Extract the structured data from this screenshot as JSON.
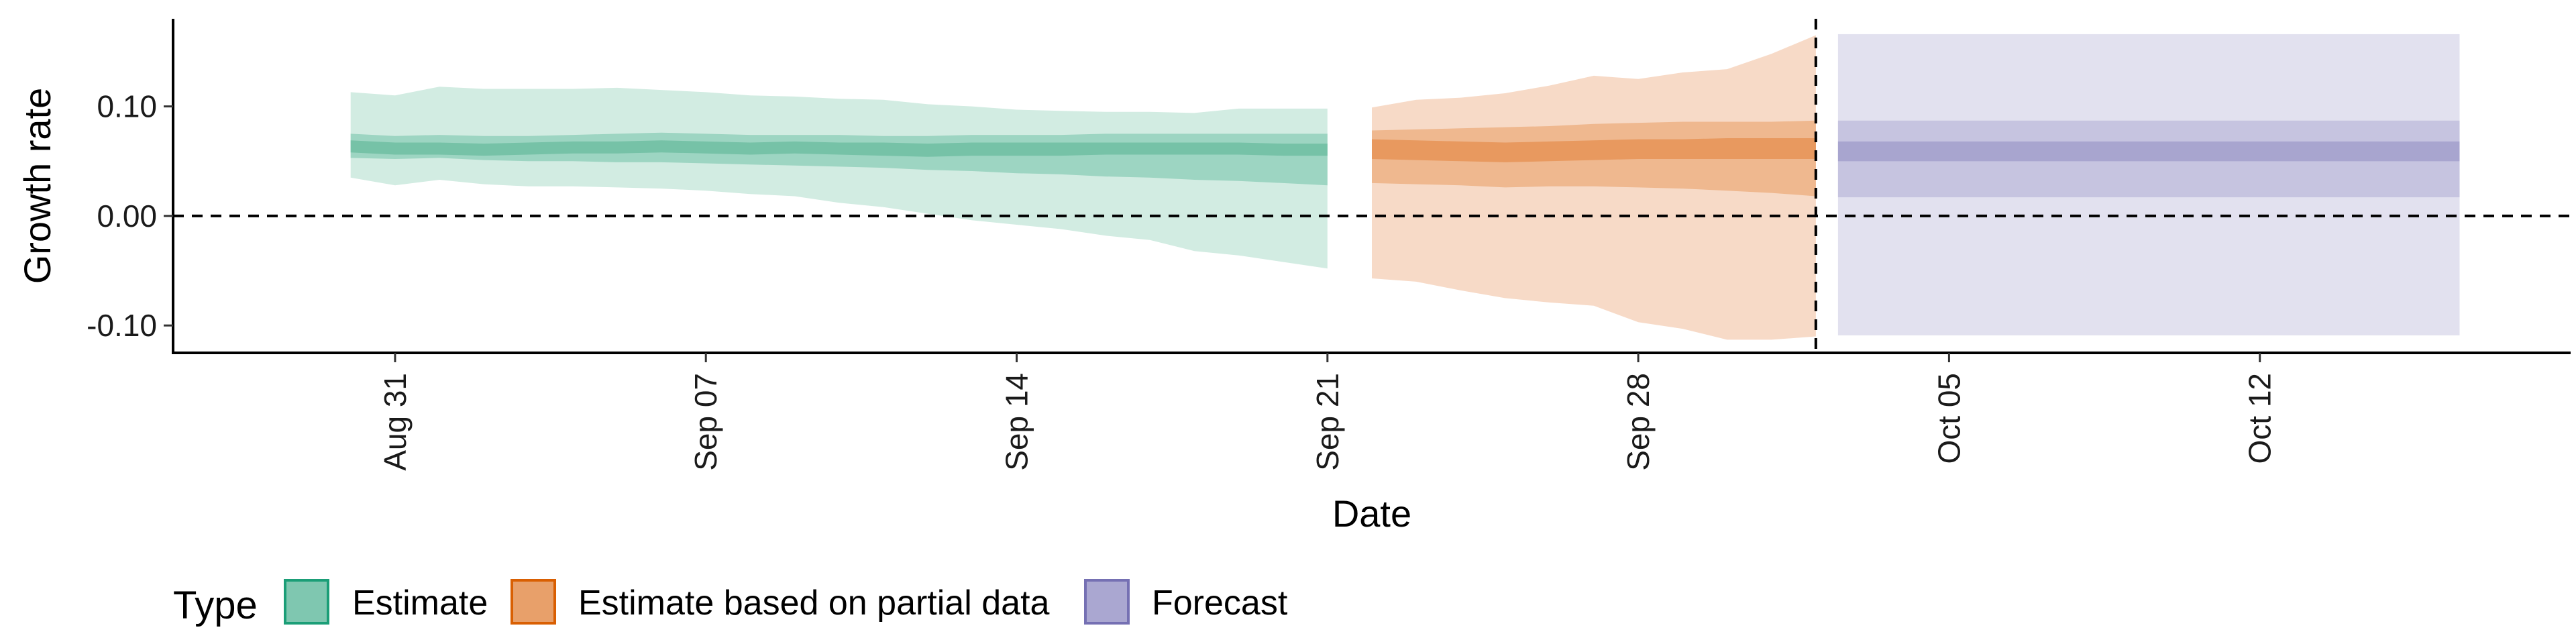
{
  "chart_data": {
    "type": "area",
    "xlabel": "Date",
    "ylabel": "Growth rate",
    "xlim": [
      "2021-08-26",
      "2021-10-19"
    ],
    "ylim": [
      -0.125,
      0.18
    ],
    "x_ticks": [
      "2021-08-31",
      "2021-09-07",
      "2021-09-14",
      "2021-09-21",
      "2021-09-28",
      "2021-10-05",
      "2021-10-12"
    ],
    "x_tick_labels": [
      "Aug 31",
      "Sep 07",
      "Sep 14",
      "Sep 21",
      "Sep 28",
      "Oct 05",
      "Oct 12"
    ],
    "y_ticks": [
      -0.1,
      0.0,
      0.1
    ],
    "y_tick_labels": [
      "-0.10",
      "0.00",
      "0.10"
    ],
    "reference_lines": [
      {
        "axis": "y",
        "value": 0.0,
        "style": "dashed"
      },
      {
        "axis": "x",
        "value": "2021-10-02",
        "style": "dashed"
      }
    ],
    "grid": false,
    "legend": {
      "position": "bottom-left",
      "title": "Type",
      "entries": [
        {
          "label": "Estimate",
          "fill": "#7fc7b0",
          "stroke": "#1b9e77"
        },
        {
          "label": "Estimate based on partial data",
          "fill": "#e8a06a",
          "stroke": "#d95f02"
        },
        {
          "label": "Forecast",
          "fill": "#aaa7d1",
          "stroke": "#7570b3"
        }
      ]
    },
    "series": [
      {
        "type_label": "Estimate",
        "colors": {
          "outer": "#d2ece2",
          "mid": "#9dd5c2",
          "inner": "#76c2a7"
        },
        "dates": [
          "2021-08-30",
          "2021-08-31",
          "2021-09-01",
          "2021-09-02",
          "2021-09-03",
          "2021-09-04",
          "2021-09-05",
          "2021-09-06",
          "2021-09-07",
          "2021-09-08",
          "2021-09-09",
          "2021-09-10",
          "2021-09-11",
          "2021-09-12",
          "2021-09-13",
          "2021-09-14",
          "2021-09-15",
          "2021-09-16",
          "2021-09-17",
          "2021-09-18",
          "2021-09-19",
          "2021-09-20",
          "2021-09-21"
        ],
        "median": [
          0.063,
          0.061,
          0.061,
          0.06,
          0.061,
          0.062,
          0.062,
          0.063,
          0.062,
          0.061,
          0.062,
          0.061,
          0.061,
          0.06,
          0.061,
          0.06,
          0.06,
          0.061,
          0.061,
          0.061,
          0.061,
          0.06,
          0.06
        ],
        "lower_90": [
          0.035,
          0.028,
          0.033,
          0.029,
          0.027,
          0.027,
          0.026,
          0.025,
          0.023,
          0.02,
          0.018,
          0.012,
          0.008,
          0.002,
          -0.004,
          -0.008,
          -0.012,
          -0.018,
          -0.022,
          -0.032,
          -0.036,
          -0.042,
          -0.048
        ],
        "upper_90": [
          0.113,
          0.11,
          0.118,
          0.116,
          0.116,
          0.116,
          0.117,
          0.115,
          0.113,
          0.11,
          0.109,
          0.107,
          0.106,
          0.102,
          0.1,
          0.097,
          0.096,
          0.095,
          0.095,
          0.094,
          0.098,
          0.098,
          0.098
        ],
        "lower_50": [
          0.053,
          0.052,
          0.053,
          0.051,
          0.05,
          0.05,
          0.049,
          0.049,
          0.048,
          0.047,
          0.046,
          0.045,
          0.044,
          0.042,
          0.041,
          0.039,
          0.038,
          0.036,
          0.035,
          0.033,
          0.032,
          0.03,
          0.028
        ],
        "upper_50": [
          0.075,
          0.073,
          0.074,
          0.073,
          0.073,
          0.074,
          0.075,
          0.076,
          0.075,
          0.074,
          0.074,
          0.074,
          0.073,
          0.073,
          0.074,
          0.074,
          0.074,
          0.075,
          0.075,
          0.075,
          0.075,
          0.075,
          0.075
        ],
        "lower_20": [
          0.058,
          0.056,
          0.056,
          0.055,
          0.056,
          0.057,
          0.057,
          0.058,
          0.057,
          0.056,
          0.057,
          0.056,
          0.055,
          0.054,
          0.055,
          0.055,
          0.055,
          0.056,
          0.056,
          0.056,
          0.056,
          0.055,
          0.055
        ],
        "upper_20": [
          0.069,
          0.067,
          0.067,
          0.066,
          0.067,
          0.068,
          0.068,
          0.069,
          0.068,
          0.067,
          0.068,
          0.067,
          0.067,
          0.066,
          0.067,
          0.067,
          0.067,
          0.067,
          0.067,
          0.067,
          0.067,
          0.066,
          0.066
        ]
      },
      {
        "type_label": "Estimate based on partial data",
        "colors": {
          "outer": "#f7dac7",
          "mid": "#efb88f",
          "inner": "#e8995f"
        },
        "dates": [
          "2021-09-22",
          "2021-09-23",
          "2021-09-24",
          "2021-09-25",
          "2021-09-26",
          "2021-09-27",
          "2021-09-28",
          "2021-09-29",
          "2021-09-30",
          "2021-10-01",
          "2021-10-02"
        ],
        "median": [
          0.06,
          0.059,
          0.058,
          0.057,
          0.058,
          0.059,
          0.06,
          0.06,
          0.061,
          0.061,
          0.061
        ],
        "lower_90": [
          -0.057,
          -0.06,
          -0.068,
          -0.075,
          -0.079,
          -0.082,
          -0.097,
          -0.103,
          -0.113,
          -0.113,
          -0.11
        ],
        "upper_90": [
          0.099,
          0.106,
          0.108,
          0.112,
          0.119,
          0.128,
          0.125,
          0.131,
          0.134,
          0.148,
          0.165
        ],
        "lower_50": [
          0.03,
          0.029,
          0.028,
          0.026,
          0.027,
          0.027,
          0.026,
          0.025,
          0.023,
          0.021,
          0.018
        ],
        "upper_50": [
          0.078,
          0.079,
          0.08,
          0.081,
          0.082,
          0.084,
          0.085,
          0.086,
          0.086,
          0.086,
          0.087
        ],
        "lower_20": [
          0.052,
          0.051,
          0.05,
          0.049,
          0.05,
          0.051,
          0.052,
          0.052,
          0.052,
          0.052,
          0.052
        ],
        "upper_20": [
          0.07,
          0.069,
          0.068,
          0.067,
          0.068,
          0.069,
          0.07,
          0.07,
          0.071,
          0.071,
          0.071
        ]
      },
      {
        "type_label": "Forecast",
        "colors": {
          "outer": "#e2e1ef",
          "mid": "#c6c4e0",
          "inner": "#a8a5cf"
        },
        "dates": [
          "2021-10-03",
          "2021-10-16"
        ],
        "median": [
          0.06,
          0.06
        ],
        "lower_90": [
          -0.109,
          -0.109
        ],
        "upper_90": [
          0.166,
          0.166
        ],
        "lower_50": [
          0.017,
          0.017
        ],
        "upper_50": [
          0.087,
          0.087
        ],
        "lower_20": [
          0.05,
          0.05
        ],
        "upper_20": [
          0.068,
          0.068
        ]
      }
    ]
  }
}
